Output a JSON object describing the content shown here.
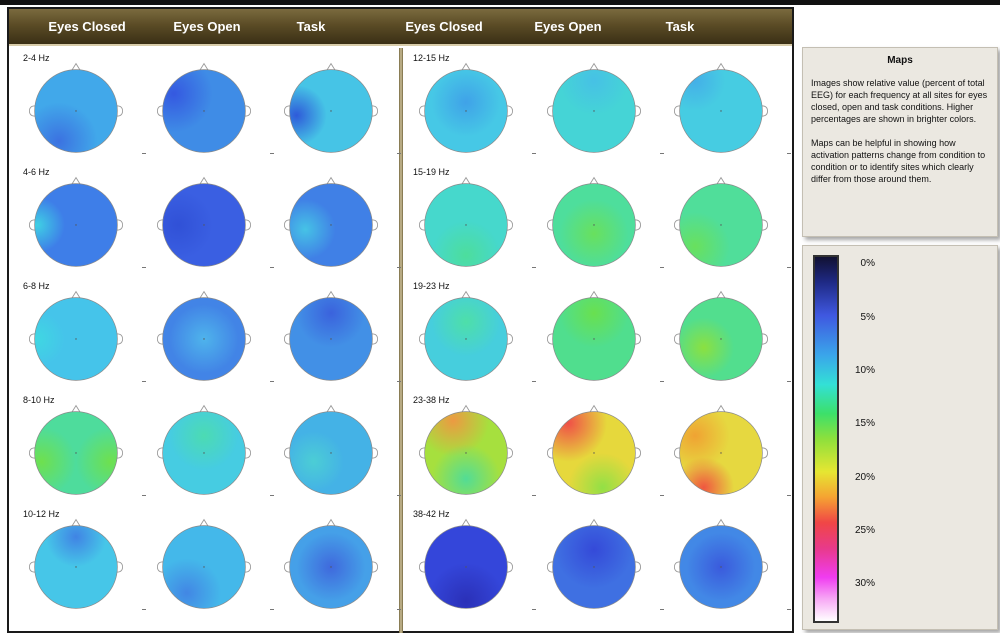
{
  "column_headers": [
    "Eyes Closed",
    "Eyes Open",
    "Task",
    "Eyes Closed",
    "Eyes Open",
    "Task"
  ],
  "panels": [
    {
      "rows": [
        {
          "freq": "2-4 Hz",
          "maps": [
            {
              "base": "#41a8ea",
              "spots": [
                [
                  "#3b6fe0",
                  0.3,
                  0.85,
                  0.25
                ]
              ]
            },
            {
              "base": "#3f8ce6",
              "spots": [
                [
                  "#3456e0",
                  0.15,
                  0.3,
                  0.25
                ]
              ]
            },
            {
              "base": "#46c4e6",
              "spots": [
                [
                  "#2d55d8",
                  0.1,
                  0.55,
                  0.15
                ]
              ]
            }
          ]
        },
        {
          "freq": "4-6 Hz",
          "maps": [
            {
              "base": "#3e7ee8",
              "spots": [
                [
                  "#3fd4e4",
                  0.05,
                  0.5,
                  0.12
                ]
              ]
            },
            {
              "base": "#3a5fe2",
              "spots": [
                [
                  "#3050d6",
                  0.2,
                  0.5,
                  0.2
                ]
              ]
            },
            {
              "base": "#4080e6",
              "spots": [
                [
                  "#46c6e6",
                  0.2,
                  0.55,
                  0.15
                ]
              ]
            }
          ]
        },
        {
          "freq": "6-8 Hz",
          "maps": [
            {
              "base": "#45c4ea",
              "spots": [
                [
                  "#3fd8e2",
                  0.05,
                  0.5,
                  0.12
                ]
              ]
            },
            {
              "base": "#4284e6",
              "spots": [
                [
                  "#4fb6ec",
                  0.5,
                  0.5,
                  0.2
                ]
              ]
            },
            {
              "base": "#4290e6",
              "spots": [
                [
                  "#3a60dc",
                  0.5,
                  0.2,
                  0.2
                ]
              ]
            }
          ]
        },
        {
          "freq": "8-10 Hz",
          "maps": [
            {
              "base": "#4edc9c",
              "spots": [
                [
                  "#70e04a",
                  0.1,
                  0.6,
                  0.2
                ],
                [
                  "#70e04a",
                  0.9,
                  0.6,
                  0.2
                ]
              ]
            },
            {
              "base": "#46cce2",
              "spots": [
                [
                  "#4cdcb0",
                  0.5,
                  0.3,
                  0.2
                ]
              ]
            },
            {
              "base": "#44b2e6",
              "spots": [
                [
                  "#4ccfd4",
                  0.3,
                  0.6,
                  0.15
                ]
              ]
            }
          ]
        },
        {
          "freq": "10-12 Hz",
          "maps": [
            {
              "base": "#46c6e8",
              "spots": [
                [
                  "#4080e4",
                  0.5,
                  0.15,
                  0.15
                ]
              ]
            },
            {
              "base": "#44b8ea",
              "spots": [
                [
                  "#4284e4",
                  0.3,
                  0.8,
                  0.2
                ]
              ]
            },
            {
              "base": "#45a0e8",
              "spots": [
                [
                  "#3f66dc",
                  0.5,
                  0.5,
                  0.2
                ]
              ]
            }
          ]
        }
      ]
    },
    {
      "rows": [
        {
          "freq": "12-15 Hz",
          "maps": [
            {
              "base": "#46c8e6",
              "spots": [
                [
                  "#3fa0e8",
                  0.5,
                  0.4,
                  0.2
                ]
              ]
            },
            {
              "base": "#45d4d6",
              "spots": [
                [
                  "#46c0e6",
                  0.5,
                  0.15,
                  0.2
                ]
              ]
            },
            {
              "base": "#46cce2",
              "spots": [
                [
                  "#44aee8",
                  0.2,
                  0.15,
                  0.15
                ]
              ]
            }
          ]
        },
        {
          "freq": "15-19 Hz",
          "maps": [
            {
              "base": "#46d8cc",
              "spots": [
                [
                  "#4dde9a",
                  0.5,
                  0.85,
                  0.2
                ]
              ]
            },
            {
              "base": "#4ede9c",
              "spots": [
                [
                  "#6ae05a",
                  0.5,
                  0.6,
                  0.2
                ]
              ]
            },
            {
              "base": "#50de9a",
              "spots": [
                [
                  "#6ae05a",
                  0.2,
                  0.75,
                  0.2
                ]
              ]
            }
          ]
        },
        {
          "freq": "19-23 Hz",
          "maps": [
            {
              "base": "#46cedd",
              "spots": [
                [
                  "#4ee0a6",
                  0.5,
                  0.3,
                  0.2
                ]
              ]
            },
            {
              "base": "#50de8e",
              "spots": [
                [
                  "#6ae04c",
                  0.5,
                  0.2,
                  0.2
                ]
              ]
            },
            {
              "base": "#52de8e",
              "spots": [
                [
                  "#8ee03c",
                  0.3,
                  0.6,
                  0.15
                ]
              ]
            }
          ]
        },
        {
          "freq": "23-38 Hz",
          "maps": [
            {
              "base": "#a6e03e",
              "spots": [
                [
                  "#f09642",
                  0.35,
                  0.12,
                  0.22
                ],
                [
                  "#4edc9a",
                  0.5,
                  0.8,
                  0.2
                ]
              ]
            },
            {
              "base": "#e6d83c",
              "spots": [
                [
                  "#f04848",
                  0.2,
                  0.15,
                  0.25
                ],
                [
                  "#8ee046",
                  0.6,
                  0.9,
                  0.2
                ]
              ]
            },
            {
              "base": "#e6d840",
              "spots": [
                [
                  "#f0a032",
                  0.2,
                  0.3,
                  0.2
                ],
                [
                  "#f05040",
                  0.3,
                  0.9,
                  0.15
                ]
              ]
            }
          ]
        },
        {
          "freq": "38-42 Hz",
          "maps": [
            {
              "base": "#3446da",
              "spots": [
                [
                  "#2a2fb6",
                  0.5,
                  0.9,
                  0.25
                ]
              ]
            },
            {
              "base": "#3f70e2",
              "spots": [
                [
                  "#3448d8",
                  0.5,
                  0.3,
                  0.25
                ]
              ]
            },
            {
              "base": "#4288e6",
              "spots": [
                [
                  "#3a58dc",
                  0.5,
                  0.5,
                  0.2
                ]
              ]
            }
          ]
        }
      ]
    }
  ],
  "info": {
    "title": "Maps",
    "paragraph1": "Images show relative value (percent of total EEG) for each frequency at all sites for eyes closed, open and task conditions. Higher percentages are shown in brighter colors.",
    "paragraph2": "Maps can be helpful in showing how activation patterns change from condition to condition or to identify sites which clearly differ from those around them."
  },
  "legend": {
    "labels": [
      "0%",
      "5%",
      "10%",
      "15%",
      "20%",
      "25%",
      "30%"
    ],
    "colors": [
      "#111133",
      "#1f2a86",
      "#3f58e0",
      "#3aa6ea",
      "#33e0d6",
      "#3ce06a",
      "#8ee03c",
      "#e6e632",
      "#f5a332",
      "#f04646",
      "#e83a8a",
      "#f03cf0",
      "#f7a9f5",
      "#ffffff"
    ]
  }
}
